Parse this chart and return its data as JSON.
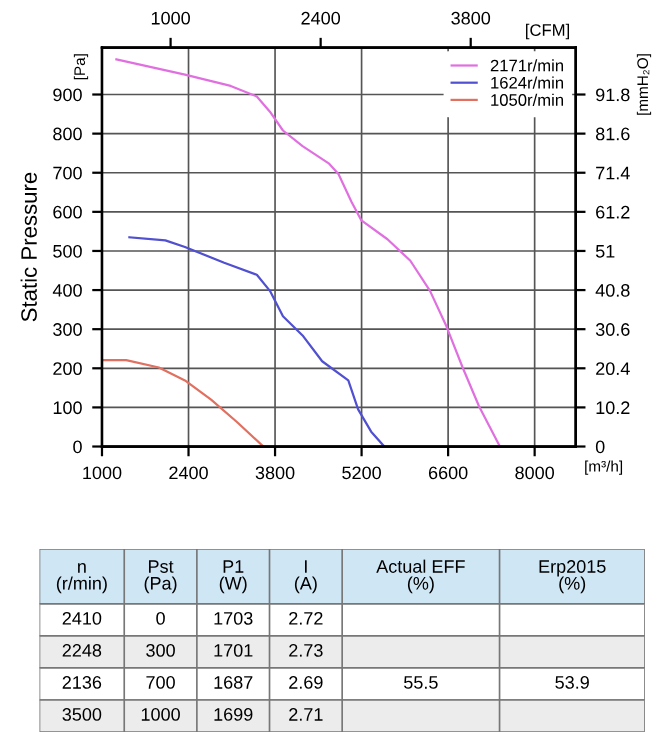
{
  "chart_data": {
    "type": "line",
    "ylabel": "Static Pressure",
    "xlabel": "[m³/h]",
    "x2label": "[CFM]",
    "y2label": "[mmH₂O]",
    "annotations": [
      "[Pa]",
      "n\n(r/min)",
      "Pst\n(Pa)",
      "P1\n(W)",
      "I\n(A)",
      "Actual EFF\n(%)",
      "Erp2015\n(%)",
      "2410",
      "0",
      "1703",
      "2.72",
      "2248",
      "300",
      "1701",
      "2.73",
      "2136",
      "700",
      "1687",
      "2.69",
      "55.5",
      "53.9",
      "3500",
      "1000",
      "1699",
      "2.71"
    ],
    "xlim": [
      1000,
      8665
    ],
    "xticks": [
      1000,
      2400,
      3800,
      5200,
      6600,
      8000
    ],
    "x2lim": [
      360,
      4780
    ],
    "x2ticks": [
      1000,
      2400,
      3800
    ],
    "ylim": [
      0,
      1020
    ],
    "yticks": [
      0,
      100,
      200,
      300,
      400,
      500,
      600,
      700,
      800,
      900
    ],
    "y2lim": [
      0,
      104.04
    ],
    "y2ticks": [
      0,
      10.2,
      20.4,
      30.6,
      40.8,
      51,
      61.2,
      71.4,
      81.6,
      91.8
    ],
    "grid": true,
    "legend": "top right",
    "series": [
      {
        "name": "2171r/min",
        "color": "#e070e0",
        "x": [
          1233,
          2342,
          3082,
          3505,
          3717,
          3928,
          4245,
          4668,
          4826,
          5038,
          5197,
          5619,
          5989,
          6307,
          6571,
          6835,
          7100,
          7438
        ],
        "values": [
          990,
          951,
          922,
          895,
          856,
          808,
          768,
          724,
          697,
          625,
          578,
          530,
          475,
          398,
          308,
          202,
          103,
          0
        ]
      },
      {
        "name": "1624r/min",
        "color": "#5050d0",
        "x": [
          1444,
          2025,
          2342,
          2977,
          3505,
          3717,
          3928,
          4245,
          4562,
          4985,
          5144,
          5355,
          5567
        ],
        "values": [
          535,
          527,
          510,
          470,
          439,
          398,
          333,
          284,
          218,
          169,
          95,
          38,
          0
        ]
      },
      {
        "name": "1050r/min",
        "color": "#e07060",
        "x": [
          1021,
          1391,
          1920,
          2342,
          2765,
          3188,
          3611
        ],
        "values": [
          221,
          221,
          202,
          169,
          120,
          62,
          0
        ]
      }
    ]
  }
}
